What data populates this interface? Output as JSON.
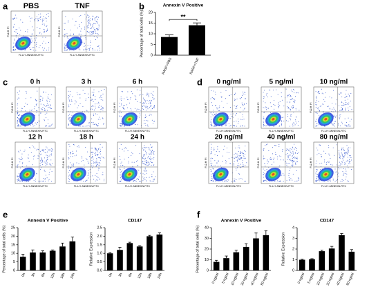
{
  "panel_labels": [
    "a",
    "b",
    "c",
    "d",
    "e",
    "f"
  ],
  "flow": {
    "y_axis": "FL2-H: PI",
    "x_axis": "FL1-H: ANNEXIN-FITC",
    "groups": [
      {
        "titles": [
          "PBS",
          "TNF"
        ]
      },
      {
        "titles": [
          "0 h",
          "3 h",
          "6 h",
          "12 h",
          "18 h",
          "24 h"
        ]
      },
      {
        "titles": [
          "0 ng/ml",
          "5 ng/ml",
          "10 ng/ml",
          "20 ng/ml",
          "40 ng/ml",
          "80 ng/ml"
        ]
      }
    ]
  },
  "chart_data": [
    {
      "type": "bar",
      "title": "Annexin V Positive",
      "y_label": "Percentage of total cells (%)",
      "categories": [
        "RASF+PBS",
        "RASF+TNF"
      ],
      "values": [
        8.5,
        14
      ],
      "errors": [
        1,
        1.1
      ],
      "ylim": [
        0,
        20
      ],
      "yticks": [
        0,
        5,
        10,
        15,
        20
      ],
      "color": "#000000",
      "annotation": "**"
    },
    {
      "type": "bar",
      "title": "Annexin V Positive",
      "y_label": "Percentage of total cells (%)",
      "categories": [
        "0h",
        "3h",
        "6h",
        "12h",
        "18h",
        "24h"
      ],
      "values": [
        8,
        10.5,
        10.5,
        11.5,
        14,
        17
      ],
      "errors": [
        1.5,
        1.5,
        1,
        0.5,
        2,
        2.5
      ],
      "ylim": [
        0,
        25
      ],
      "yticks": [
        0,
        5,
        10,
        15,
        20,
        25
      ],
      "color": "#000000"
    },
    {
      "type": "bar",
      "title": "CD147",
      "y_label": "Relative Expression",
      "categories": [
        "0h",
        "3h",
        "6h",
        "12h",
        "18h",
        "24h"
      ],
      "values": [
        1.0,
        1.2,
        1.6,
        1.4,
        2.0,
        2.1
      ],
      "errors": [
        0.05,
        0.15,
        0.05,
        0.05,
        0.05,
        0.1
      ],
      "ylim": [
        0,
        2.5
      ],
      "yticks": [
        {
          "value": 0,
          "label": "0.0"
        },
        0.5,
        {
          "value": 1,
          "label": "1.0"
        },
        1.5,
        {
          "value": 2,
          "label": "2.0"
        },
        2.5
      ],
      "color": "#000000"
    },
    {
      "type": "bar",
      "title": "Annexin V Positive",
      "y_label": "Percentage of total cells (%)",
      "categories": [
        "0 ng/ml",
        "5 ng/ml",
        "10 ng/ml",
        "20 ng/ml",
        "40 ng/ml",
        "80 ng/ml"
      ],
      "values": [
        8,
        11.5,
        17,
        22,
        30,
        33
      ],
      "errors": [
        1.5,
        2,
        2,
        3,
        5,
        4
      ],
      "ylim": [
        0,
        40
      ],
      "yticks": [
        0,
        10,
        20,
        30,
        40
      ],
      "color": "#000000"
    },
    {
      "type": "bar",
      "title": "CD147",
      "y_label": "Relative Expression",
      "categories": [
        "0 ng/ml",
        "5 ng/ml",
        "10 ng/ml",
        "20 ng/ml",
        "40 ng/ml",
        "80 ng/ml"
      ],
      "values": [
        1.0,
        1.05,
        1.8,
        2.05,
        3.3,
        1.75
      ],
      "errors": [
        0.05,
        0.05,
        0.1,
        0.2,
        0.15,
        0.2
      ],
      "ylim": [
        0,
        4
      ],
      "yticks": [
        0,
        1,
        2,
        3,
        4
      ],
      "color": "#000000"
    }
  ]
}
